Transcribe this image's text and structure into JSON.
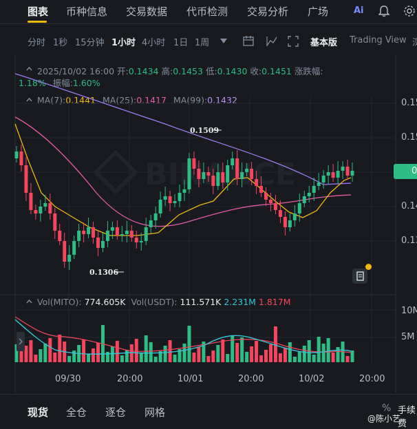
{
  "nav": {
    "tabs": [
      "图表",
      "币种信息",
      "交易数据",
      "代币检测",
      "交易分析",
      "广场"
    ],
    "ai_label": "Ai"
  },
  "toolbar": {
    "intervals": [
      "分时",
      "1秒",
      "15分钟",
      "1小时",
      "4小时",
      "1日",
      "1周"
    ],
    "active": "1小时",
    "basic": "基本版",
    "tv": "Trading View",
    "more": "深"
  },
  "ohlc": {
    "date": "2025/10/02 16:00",
    "open_l": "开:",
    "open": "0.1434",
    "high_l": "高:",
    "high": "0.1453",
    "low_l": "低:",
    "low": "0.1430",
    "close_l": "收:",
    "close": "0.1451",
    "chg_l": "涨跌幅:",
    "chg": "1.18%",
    "amp_l": "振幅:",
    "amp": "1.60%"
  },
  "ma": {
    "ma7_l": "MA(7):",
    "ma7": "0.1441",
    "ma25_l": "MA(25):",
    "ma25": "0.1417",
    "ma99_l": "MA(99):",
    "ma99": "0.1432"
  },
  "annot": {
    "high": "0.1509",
    "low": "0.1306"
  },
  "yaxis": {
    "labels": [
      "0.15",
      "0.15",
      "0.14",
      "0.14",
      "0.13"
    ],
    "current": "0.14"
  },
  "xaxis": {
    "labels": [
      "09/30",
      "20:00",
      "10/01",
      "20:00",
      "10/02",
      "20:00"
    ]
  },
  "volume": {
    "mito_l": "Vol(MITO):",
    "mito": "774.605K",
    "usdt_l": "Vol(USDT):",
    "usdt": "111.571K",
    "v1": "2.231M",
    "v2": "1.817M",
    "ylabels": [
      "10M",
      "5M"
    ]
  },
  "bottom": {
    "tabs": [
      "现货",
      "全仓",
      "逐仓",
      "网格"
    ],
    "fee": "手续费",
    "watermark": "@陈小艺"
  },
  "colors": {
    "up": "#2ebd85",
    "down": "#f6465d",
    "ma7": "#f0b90b",
    "ma25": "#e85aa8",
    "ma99": "#9c7cf0",
    "bg": "#181a20"
  }
}
